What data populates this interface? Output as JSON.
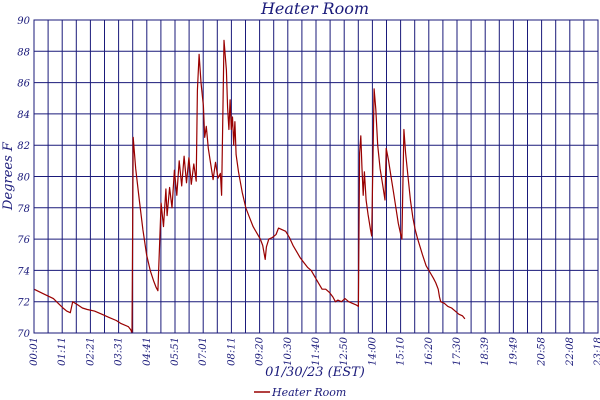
{
  "chart_data": {
    "type": "line",
    "title": "Heater Room",
    "xlabel": "01/30/23 (EST)",
    "ylabel": "Degrees F",
    "ylim": [
      70,
      90
    ],
    "y_ticks": [
      70,
      72,
      74,
      76,
      78,
      80,
      82,
      84,
      86,
      88,
      90
    ],
    "x_ticks": [
      "00:01",
      "01:11",
      "02:21",
      "03:31",
      "04:41",
      "05:51",
      "07:01",
      "08:11",
      "09:20",
      "10:30",
      "11:40",
      "12:50",
      "14:00",
      "15:10",
      "16:20",
      "17:30",
      "18:39",
      "19:49",
      "20:58",
      "22:08",
      "23:18"
    ],
    "grid": true,
    "legend": "bottom",
    "series": [
      {
        "name": "Heater Room",
        "color": "#990000",
        "points": [
          [
            0.0,
            72.8
          ],
          [
            0.4,
            72.5
          ],
          [
            0.8,
            72.2
          ],
          [
            1.0,
            71.9
          ],
          [
            1.2,
            71.6
          ],
          [
            1.35,
            71.4
          ],
          [
            1.5,
            71.3
          ],
          [
            1.6,
            72.0
          ],
          [
            1.8,
            71.8
          ],
          [
            2.0,
            71.6
          ],
          [
            2.2,
            71.5
          ],
          [
            2.5,
            71.4
          ],
          [
            2.8,
            71.2
          ],
          [
            3.1,
            71.0
          ],
          [
            3.4,
            70.8
          ],
          [
            3.6,
            70.6
          ],
          [
            3.9,
            70.4
          ],
          [
            4.0,
            70.2
          ],
          [
            4.05,
            70.0
          ],
          [
            4.1,
            82.5
          ],
          [
            4.2,
            80.5
          ],
          [
            4.35,
            78.5
          ],
          [
            4.5,
            76.6
          ],
          [
            4.65,
            75.0
          ],
          [
            4.8,
            74.0
          ],
          [
            4.95,
            73.3
          ],
          [
            5.05,
            72.9
          ],
          [
            5.12,
            72.7
          ],
          [
            5.25,
            78.3
          ],
          [
            5.35,
            76.8
          ],
          [
            5.45,
            79.2
          ],
          [
            5.5,
            77.5
          ],
          [
            5.6,
            79.3
          ],
          [
            5.7,
            78.0
          ],
          [
            5.8,
            80.4
          ],
          [
            5.9,
            78.8
          ],
          [
            6.0,
            81.0
          ],
          [
            6.1,
            79.4
          ],
          [
            6.2,
            81.3
          ],
          [
            6.3,
            79.6
          ],
          [
            6.4,
            81.2
          ],
          [
            6.5,
            79.5
          ],
          [
            6.6,
            80.8
          ],
          [
            6.7,
            79.7
          ],
          [
            6.75,
            85.5
          ],
          [
            6.82,
            87.8
          ],
          [
            6.9,
            86.0
          ],
          [
            7.0,
            84.5
          ],
          [
            7.05,
            82.5
          ],
          [
            7.12,
            83.2
          ],
          [
            7.2,
            81.8
          ],
          [
            7.3,
            80.8
          ],
          [
            7.4,
            79.8
          ],
          [
            7.5,
            80.9
          ],
          [
            7.6,
            79.9
          ],
          [
            7.7,
            80.2
          ],
          [
            7.75,
            78.8
          ],
          [
            7.85,
            88.7
          ],
          [
            7.95,
            86.8
          ],
          [
            8.0,
            84.4
          ],
          [
            8.05,
            83.0
          ],
          [
            8.1,
            84.9
          ],
          [
            8.15,
            83.0
          ],
          [
            8.2,
            83.8
          ],
          [
            8.25,
            82.0
          ],
          [
            8.3,
            83.5
          ],
          [
            8.35,
            81.4
          ],
          [
            8.45,
            80.3
          ],
          [
            8.6,
            79.0
          ],
          [
            8.75,
            78.0
          ],
          [
            8.9,
            77.4
          ],
          [
            9.05,
            76.8
          ],
          [
            9.2,
            76.4
          ],
          [
            9.35,
            76.0
          ],
          [
            9.45,
            75.6
          ],
          [
            9.55,
            74.7
          ],
          [
            9.6,
            75.5
          ],
          [
            9.7,
            76.0
          ],
          [
            9.85,
            76.1
          ],
          [
            10.0,
            76.3
          ],
          [
            10.1,
            76.7
          ],
          [
            10.25,
            76.6
          ],
          [
            10.4,
            76.5
          ],
          [
            10.55,
            76.1
          ],
          [
            10.7,
            75.6
          ],
          [
            10.85,
            75.2
          ],
          [
            11.0,
            74.8
          ],
          [
            11.15,
            74.5
          ],
          [
            11.3,
            74.2
          ],
          [
            11.45,
            74.0
          ],
          [
            11.6,
            73.6
          ],
          [
            11.75,
            73.2
          ],
          [
            11.9,
            72.8
          ],
          [
            12.05,
            72.8
          ],
          [
            12.2,
            72.6
          ],
          [
            12.35,
            72.3
          ],
          [
            12.45,
            72.0
          ],
          [
            12.55,
            72.1
          ],
          [
            12.7,
            72.0
          ],
          [
            12.85,
            72.2
          ],
          [
            13.0,
            72.0
          ],
          [
            13.15,
            71.9
          ],
          [
            13.3,
            71.8
          ],
          [
            13.4,
            71.7
          ],
          [
            13.45,
            81.5
          ],
          [
            13.5,
            82.6
          ],
          [
            13.55,
            80.5
          ],
          [
            13.6,
            78.8
          ],
          [
            13.65,
            80.3
          ],
          [
            13.72,
            78.5
          ],
          [
            13.8,
            77.6
          ],
          [
            13.9,
            76.6
          ],
          [
            13.95,
            76.2
          ],
          [
            14.05,
            85.6
          ],
          [
            14.12,
            84.3
          ],
          [
            14.2,
            82.0
          ],
          [
            14.3,
            80.5
          ],
          [
            14.4,
            79.5
          ],
          [
            14.5,
            78.5
          ],
          [
            14.55,
            81.8
          ],
          [
            14.65,
            81.0
          ],
          [
            14.75,
            80.0
          ],
          [
            14.85,
            79.0
          ],
          [
            14.95,
            78.0
          ],
          [
            15.05,
            77.0
          ],
          [
            15.15,
            76.3
          ],
          [
            15.2,
            76.0
          ],
          [
            15.28,
            83.0
          ],
          [
            15.35,
            81.5
          ],
          [
            15.45,
            80.0
          ],
          [
            15.55,
            78.5
          ],
          [
            15.65,
            77.4
          ],
          [
            15.75,
            76.6
          ],
          [
            15.85,
            76.0
          ],
          [
            15.95,
            75.5
          ],
          [
            16.05,
            75.0
          ],
          [
            16.2,
            74.3
          ],
          [
            16.35,
            73.9
          ],
          [
            16.5,
            73.5
          ],
          [
            16.6,
            73.2
          ],
          [
            16.7,
            72.8
          ],
          [
            16.75,
            72.3
          ],
          [
            16.8,
            72.0
          ],
          [
            16.95,
            71.9
          ],
          [
            17.1,
            71.7
          ],
          [
            17.25,
            71.6
          ],
          [
            17.4,
            71.4
          ],
          [
            17.55,
            71.2
          ],
          [
            17.7,
            71.1
          ],
          [
            17.8,
            70.9
          ]
        ]
      }
    ]
  }
}
